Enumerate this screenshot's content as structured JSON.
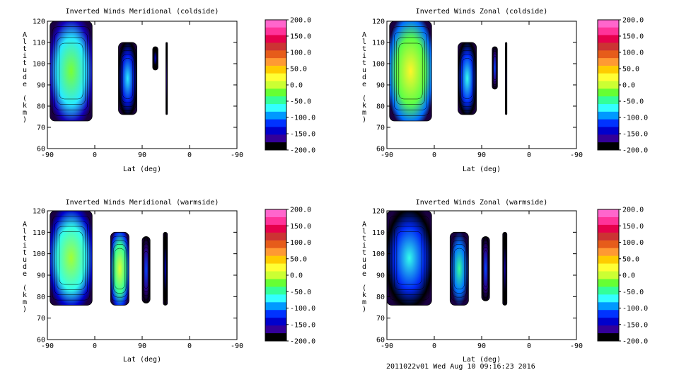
{
  "footer": "2011022v01 Wed Aug 10 09:16:23 2016",
  "colorbar": {
    "labels": [
      "200.0",
      "150.0",
      "100.0",
      "50.0",
      "0.0",
      "-50.0",
      "-100.0",
      "-150.0",
      "-200.0"
    ],
    "colors": [
      "#ff66cc",
      "#ff3399",
      "#e6004c",
      "#cc3333",
      "#e65c1a",
      "#ff9933",
      "#ffcc00",
      "#ffff33",
      "#ccff33",
      "#66ff33",
      "#33ff99",
      "#33ffff",
      "#0099ff",
      "#0033ff",
      "#0000cc",
      "#330099",
      "#000000"
    ]
  },
  "chart_data": [
    {
      "type": "heatmap",
      "title": "Inverted Winds Meridional (coldside)",
      "xlabel": "Lat (deg)",
      "ylabel": "Altitude (km)",
      "x_ticks": [
        "-90",
        "0",
        "90",
        "0",
        "-90"
      ],
      "y_ticks": [
        "60",
        "70",
        "80",
        "90",
        "100",
        "110",
        "120"
      ],
      "ylim": [
        60,
        120
      ],
      "zlim": [
        -200,
        200
      ],
      "regions": [
        {
          "lat_start": -85,
          "lat_end": -5,
          "alt_bottom": 73,
          "alt_top": 120,
          "value": -20
        },
        {
          "lat_start": 45,
          "lat_end": 80,
          "alt_bottom": 76,
          "alt_top": 110,
          "value": -80
        },
        {
          "lat_start": 110,
          "lat_end": 120,
          "alt_bottom": 97,
          "alt_top": 108,
          "value": -150
        },
        {
          "lat_start": 135,
          "lat_end": 138,
          "alt_bottom": 76,
          "alt_top": 110,
          "value": -170
        }
      ]
    },
    {
      "type": "heatmap",
      "title": "Inverted Winds Zonal (coldside)",
      "xlabel": "Lat (deg)",
      "ylabel": "Altitude (km)",
      "x_ticks": [
        "-90",
        "0",
        "90",
        "0",
        "-90"
      ],
      "y_ticks": [
        "60",
        "70",
        "80",
        "90",
        "100",
        "110",
        "120"
      ],
      "ylim": [
        60,
        120
      ],
      "zlim": [
        -200,
        200
      ],
      "regions": [
        {
          "lat_start": -85,
          "lat_end": -5,
          "alt_bottom": 73,
          "alt_top": 120,
          "value": 30
        },
        {
          "lat_start": 45,
          "lat_end": 80,
          "alt_bottom": 76,
          "alt_top": 110,
          "value": -70
        },
        {
          "lat_start": 110,
          "lat_end": 120,
          "alt_bottom": 88,
          "alt_top": 108,
          "value": -120
        },
        {
          "lat_start": 135,
          "lat_end": 138,
          "alt_bottom": 76,
          "alt_top": 110,
          "value": -170
        }
      ]
    },
    {
      "type": "heatmap",
      "title": "Inverted Winds Meridional (warmside)",
      "xlabel": "Lat (deg)",
      "ylabel": "Altitude (km)",
      "x_ticks": [
        "-90",
        "0",
        "90",
        "0",
        "-90"
      ],
      "y_ticks": [
        "60",
        "70",
        "80",
        "90",
        "100",
        "110",
        "120"
      ],
      "ylim": [
        60,
        120
      ],
      "zlim": [
        -200,
        200
      ],
      "regions": [
        {
          "lat_start": -85,
          "lat_end": -5,
          "alt_bottom": 76,
          "alt_top": 120,
          "value": -10
        },
        {
          "lat_start": 30,
          "lat_end": 65,
          "alt_bottom": 76,
          "alt_top": 110,
          "value": 10
        },
        {
          "lat_start": 90,
          "lat_end": 105,
          "alt_bottom": 77,
          "alt_top": 108,
          "value": -120
        },
        {
          "lat_start": 130,
          "lat_end": 138,
          "alt_bottom": 76,
          "alt_top": 110,
          "value": -150
        }
      ]
    },
    {
      "type": "heatmap",
      "title": "Inverted Winds Zonal (warmside)",
      "xlabel": "Lat (deg)",
      "ylabel": "Altitude (km)",
      "x_ticks": [
        "-90",
        "0",
        "90",
        "0",
        "-90"
      ],
      "y_ticks": [
        "60",
        "70",
        "80",
        "90",
        "100",
        "110",
        "120"
      ],
      "ylim": [
        60,
        120
      ],
      "zlim": [
        -200,
        200
      ],
      "regions": [
        {
          "lat_start": -90,
          "lat_end": -5,
          "alt_bottom": 76,
          "alt_top": 120,
          "value": -70
        },
        {
          "lat_start": 30,
          "lat_end": 65,
          "alt_bottom": 76,
          "alt_top": 110,
          "value": -50
        },
        {
          "lat_start": 90,
          "lat_end": 105,
          "alt_bottom": 78,
          "alt_top": 108,
          "value": -120
        },
        {
          "lat_start": 130,
          "lat_end": 138,
          "alt_bottom": 76,
          "alt_top": 110,
          "value": -160
        }
      ]
    }
  ]
}
